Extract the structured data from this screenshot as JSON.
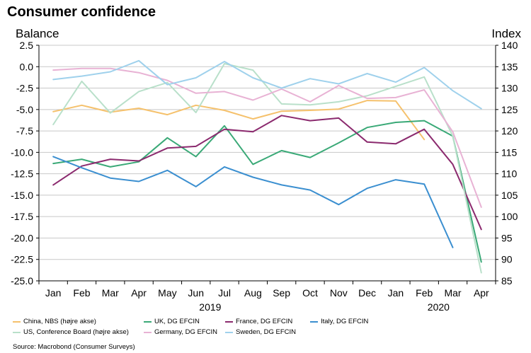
{
  "header": {
    "title": "Consumer confidence",
    "left_unit": "Balance",
    "right_unit": "Index"
  },
  "source": "Source: Macrobond (Consumer Surveys)",
  "colors": {
    "china": "#f5c16c",
    "uk": "#3aa977",
    "france": "#8b2a6e",
    "italy": "#3b8fd0",
    "us": "#b9e0ca",
    "germany": "#e8b2d4",
    "sweden": "#9fd1ec",
    "grid": "#c8c8c8",
    "axis": "#000000"
  },
  "chart_data": {
    "type": "line",
    "categories": [
      "Jan",
      "Feb",
      "Mar",
      "Apr",
      "May",
      "Jun",
      "Jul",
      "Aug",
      "Sep",
      "Oct",
      "Nov",
      "Dec",
      "Jan",
      "Feb",
      "Mar",
      "Apr"
    ],
    "year_labels": [
      {
        "label": "2019",
        "at_index": 5.5
      },
      {
        "label": "2020",
        "at_index": 13.5
      }
    ],
    "y_left": {
      "label": "Balance",
      "min": -25.0,
      "max": 2.5,
      "step": 2.5,
      "ticks": [
        "2.5",
        "0.0",
        "-2.5",
        "-5.0",
        "-7.5",
        "-10.0",
        "-12.5",
        "-15.0",
        "-17.5",
        "-20.0",
        "-22.5",
        "-25.0"
      ]
    },
    "y_right": {
      "label": "Index",
      "min": 85,
      "max": 140,
      "step": 5,
      "ticks": [
        "140",
        "135",
        "130",
        "125",
        "120",
        "115",
        "110",
        "105",
        "100",
        "95",
        "90",
        "85"
      ]
    },
    "grid": true,
    "legend_position": "bottom",
    "series": [
      {
        "key": "china",
        "name": "China, NBS (højre akse)",
        "axis": "right",
        "values": [
          124.5,
          126.0,
          124.4,
          125.3,
          123.8,
          126.0,
          124.8,
          122.8,
          124.6,
          124.8,
          125.1,
          127.1,
          127.0,
          118.0,
          null,
          null
        ]
      },
      {
        "key": "uk",
        "name": "UK, DG EFCIN",
        "axis": "left",
        "values": [
          -11.3,
          -10.8,
          -11.7,
          -11.1,
          -8.3,
          -10.5,
          -6.9,
          -11.4,
          -9.8,
          -10.6,
          -8.9,
          -7.1,
          -6.5,
          -6.3,
          -8.1,
          -22.8
        ]
      },
      {
        "key": "france",
        "name": "France, DG EFCIN",
        "axis": "left",
        "values": [
          -13.8,
          -11.6,
          -10.8,
          -11.0,
          -9.5,
          -9.3,
          -7.3,
          -7.6,
          -5.7,
          -6.3,
          -6.0,
          -8.8,
          -9.0,
          -7.3,
          -11.4,
          -19.0
        ]
      },
      {
        "key": "italy",
        "name": "Italy, DG EFCIN",
        "axis": "left",
        "values": [
          -10.5,
          -11.8,
          -13.0,
          -13.4,
          -12.1,
          -14.0,
          -11.7,
          -12.9,
          -13.8,
          -14.4,
          -16.1,
          -14.2,
          -13.2,
          -13.7,
          -21.1,
          null
        ]
      },
      {
        "key": "us",
        "name": "US, Conference Board (højre akse)",
        "axis": "right",
        "values": [
          121.5,
          131.6,
          124.2,
          129.2,
          131.3,
          124.3,
          135.7,
          134.2,
          126.3,
          126.1,
          126.8,
          128.2,
          130.4,
          132.6,
          118.8,
          86.9
        ]
      },
      {
        "key": "germany",
        "name": "Germany, DG EFCIN",
        "axis": "left",
        "values": [
          -0.4,
          -0.2,
          -0.2,
          -0.7,
          -1.6,
          -3.1,
          -2.9,
          -3.9,
          -2.6,
          -4.1,
          -2.2,
          -3.7,
          -3.6,
          -2.7,
          -7.6,
          -16.4
        ]
      },
      {
        "key": "sweden",
        "name": "Sweden, DG EFCIN",
        "axis": "left",
        "values": [
          -1.5,
          -1.1,
          -0.6,
          0.7,
          -2.1,
          -1.3,
          0.6,
          -1.3,
          -2.5,
          -1.4,
          -2.0,
          -0.8,
          -1.8,
          -0.1,
          -2.8,
          -4.9
        ]
      }
    ]
  }
}
